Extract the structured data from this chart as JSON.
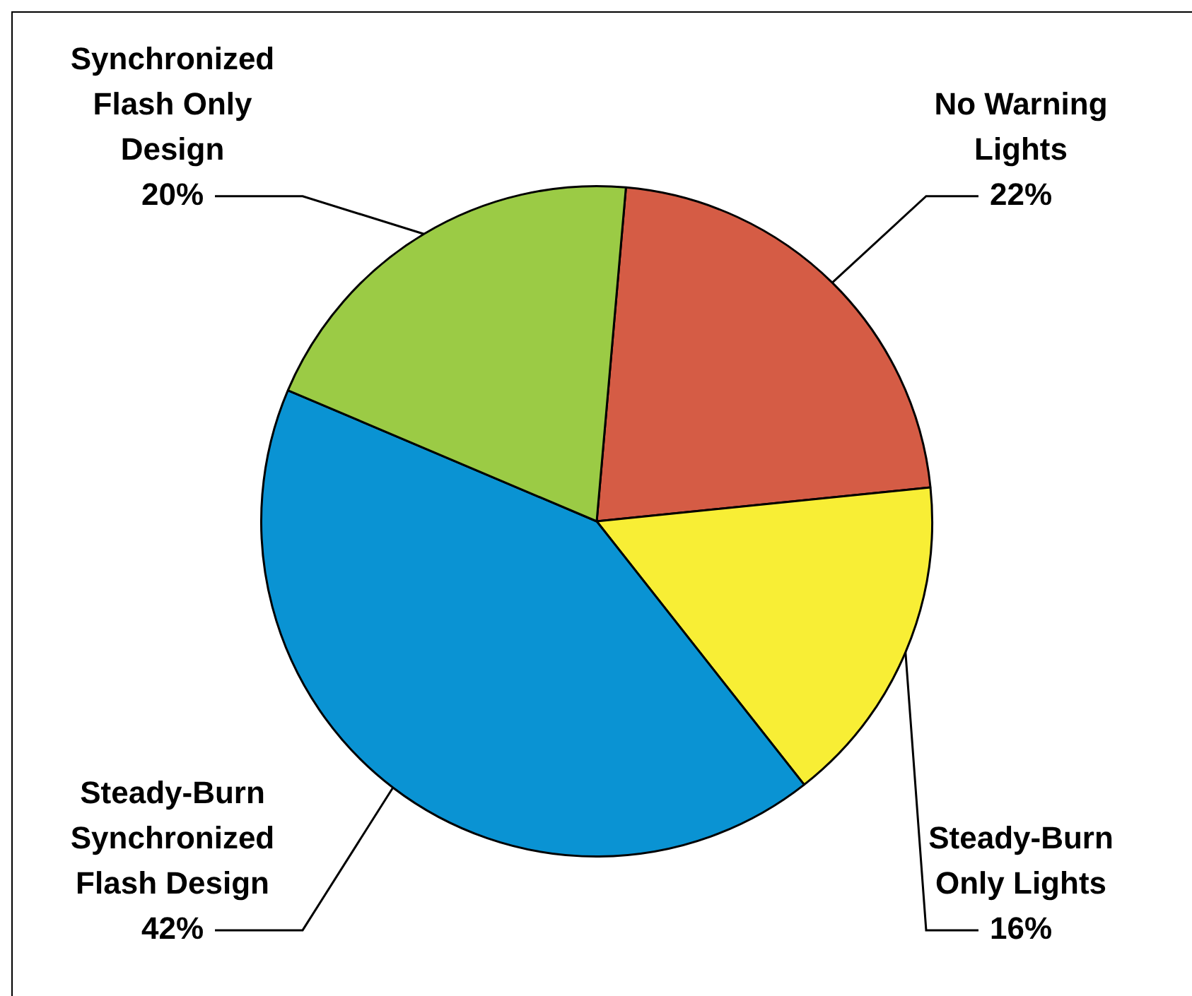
{
  "chart_data": {
    "type": "pie",
    "categories": [
      "No Warning Lights",
      "Steady-Burn Only Lights",
      "Steady-Burn Synchronized Flash Design",
      "Synchronized Flash Only Design"
    ],
    "values": [
      22,
      16,
      42,
      20
    ],
    "value_labels": [
      "22%",
      "16%",
      "42%",
      "20%"
    ],
    "colors": [
      "#d55c45",
      "#f8ee35",
      "#0a93d3",
      "#9bcb45"
    ],
    "legend": false
  }
}
